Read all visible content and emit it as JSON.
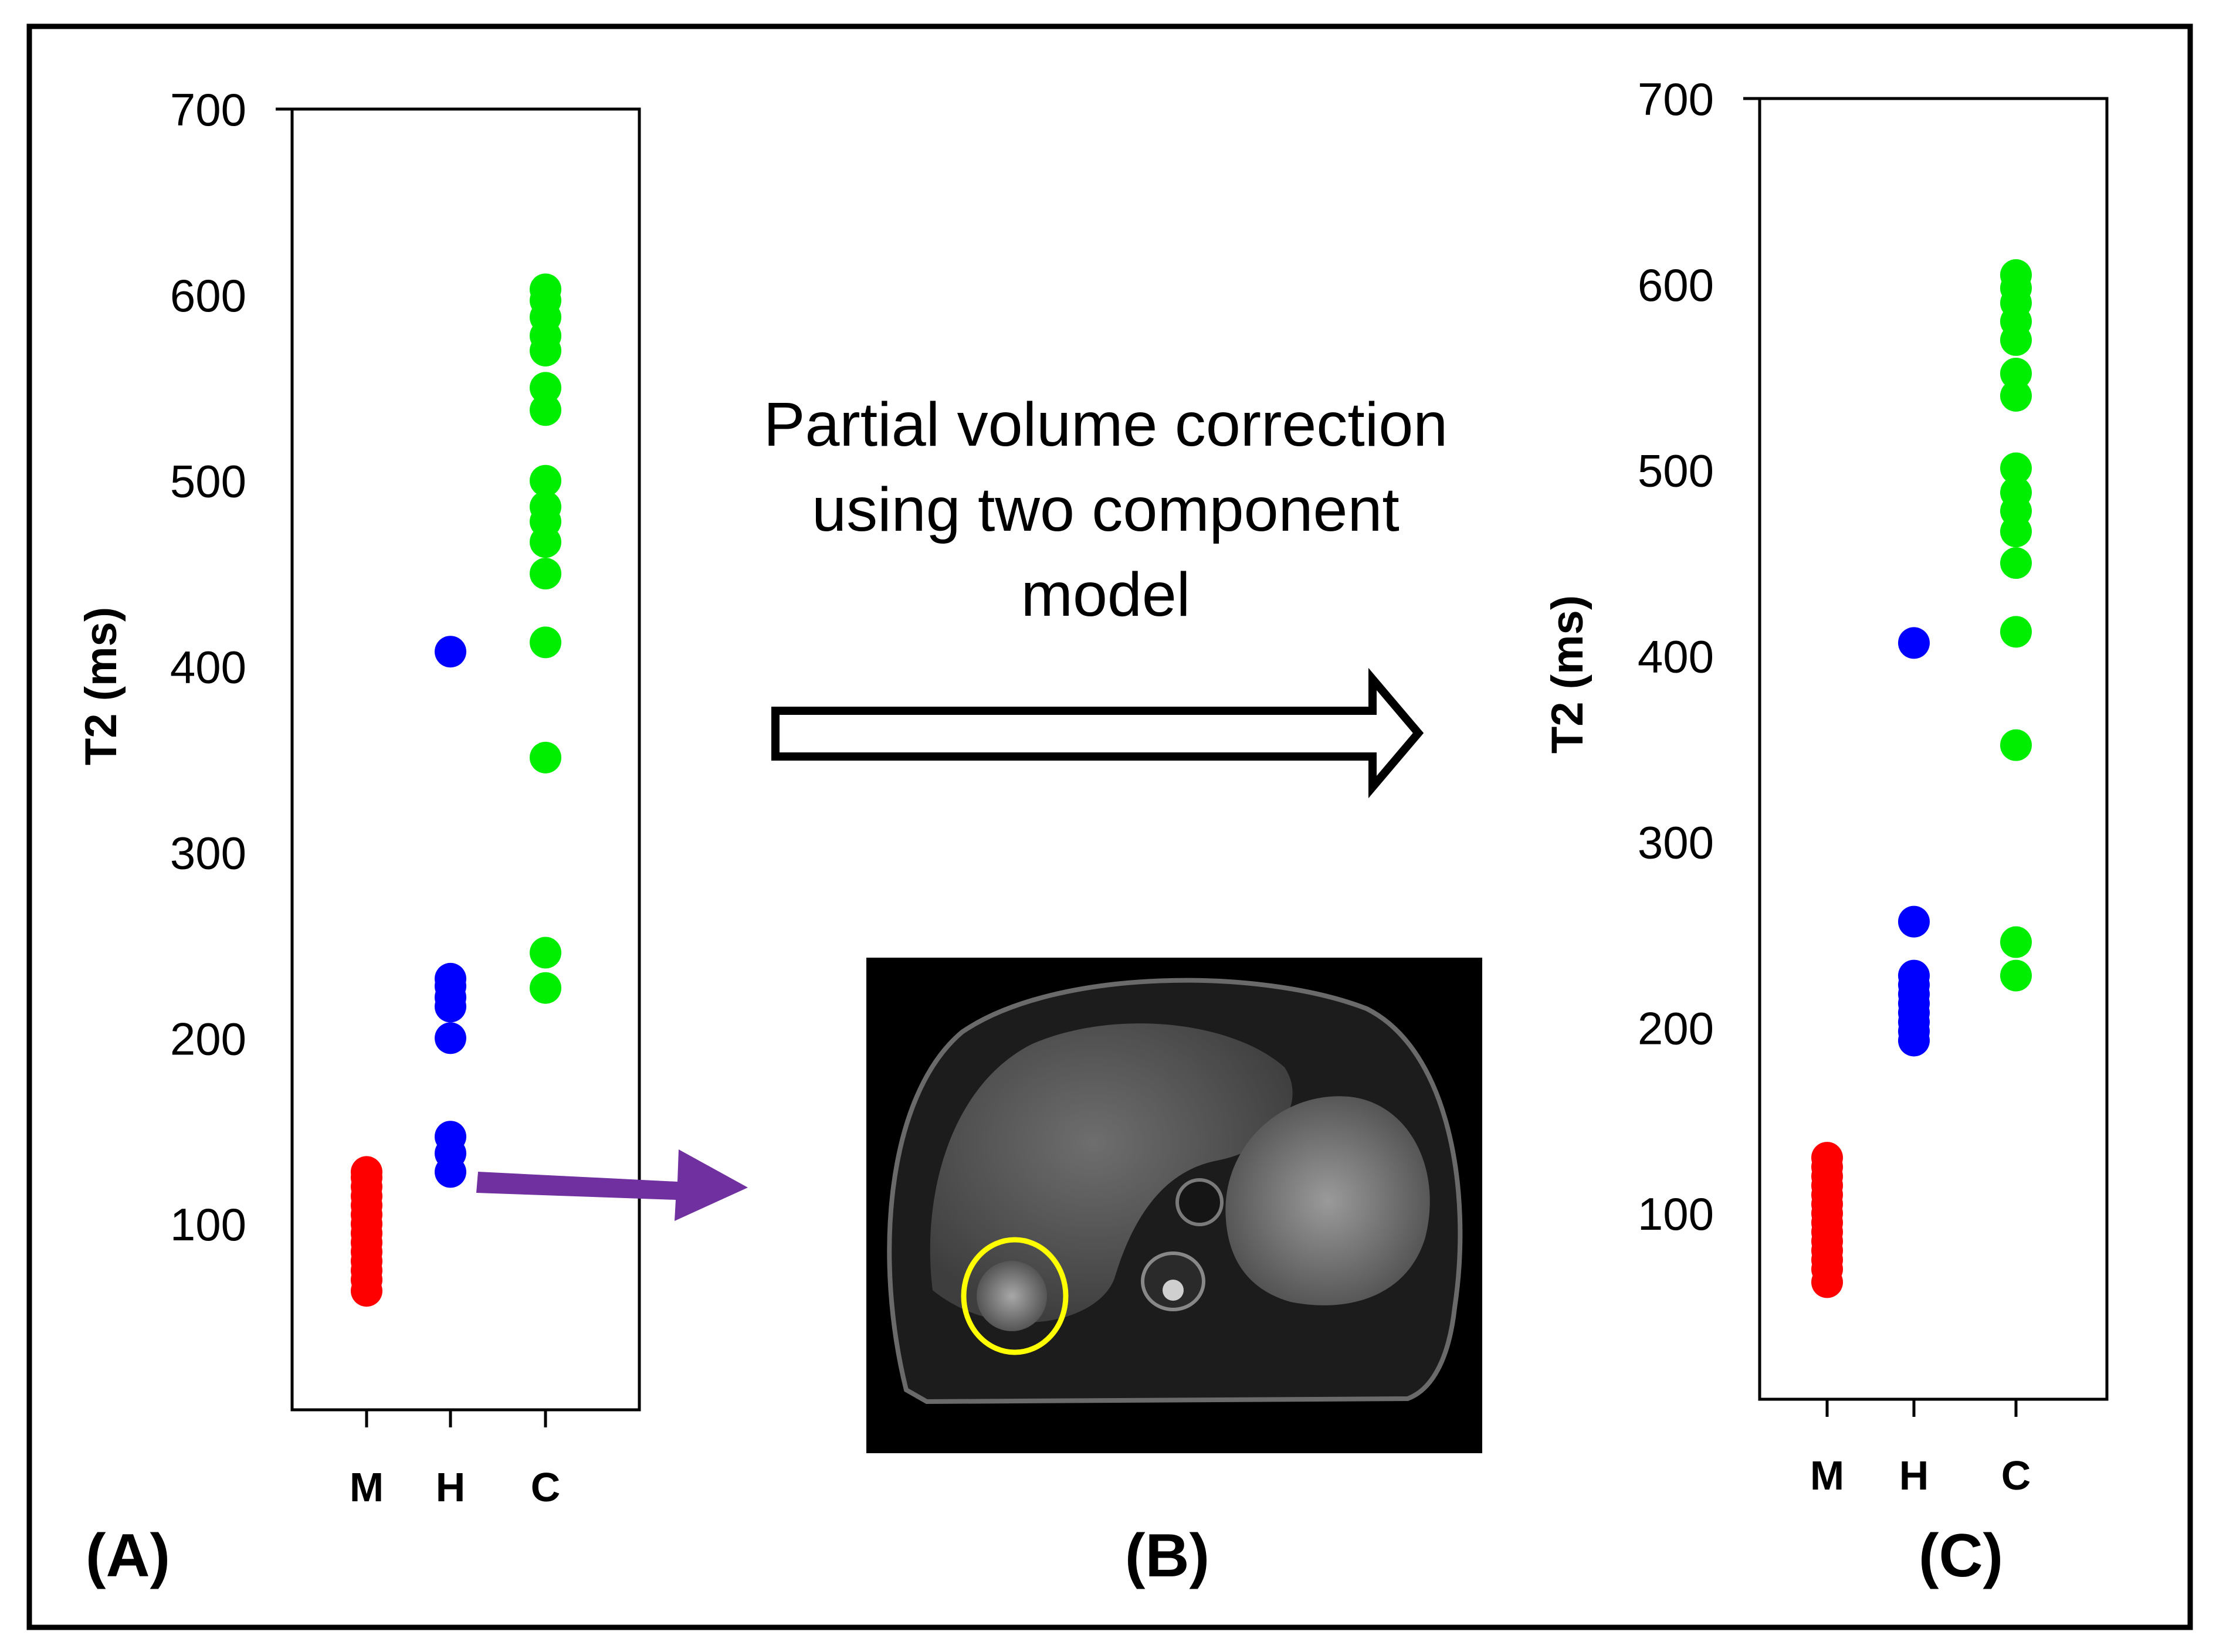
{
  "figure": {
    "panel_labels": [
      "(A)",
      "(B)",
      "(C)"
    ],
    "arrow_caption": [
      "Partial volume correction",
      "using two component",
      "model"
    ],
    "mri_image": {
      "description_icon": "mri-liver-axial-image",
      "highlight_color": "#ffff00"
    }
  },
  "colors": {
    "M": "#ff0000",
    "H": "#0000ff",
    "C": "#00ee00",
    "pointer_arrow": "#7030a0",
    "frame": "#000000"
  },
  "chart_data": [
    {
      "type": "scatter",
      "panel": "(A)",
      "title": "",
      "xlabel": "",
      "ylabel": "T2 (ms)",
      "categories": [
        "M",
        "H",
        "C"
      ],
      "ylim": [
        0,
        700
      ],
      "yticks": [
        100,
        200,
        300,
        400,
        500,
        600,
        700
      ],
      "series": [
        {
          "name": "M",
          "values": [
            64,
            70,
            75,
            80,
            85,
            90,
            95,
            100,
            105,
            110,
            115,
            120,
            125,
            128
          ]
        },
        {
          "name": "H",
          "values": [
            128,
            138,
            147,
            200,
            217,
            222,
            228,
            232,
            408
          ]
        },
        {
          "name": "C",
          "values": [
            227,
            246,
            351,
            413,
            450,
            467,
            478,
            486,
            500,
            538,
            550,
            570,
            578,
            588,
            597,
            603
          ]
        }
      ]
    },
    {
      "type": "scatter",
      "panel": "(C)",
      "title": "",
      "xlabel": "",
      "ylabel": "T2 (ms)",
      "categories": [
        "M",
        "H",
        "C"
      ],
      "ylim": [
        0,
        700
      ],
      "yticks": [
        100,
        200,
        300,
        400,
        500,
        600,
        700
      ],
      "series": [
        {
          "name": "M",
          "values": [
            63,
            70,
            75,
            80,
            85,
            90,
            95,
            100,
            105,
            110,
            115,
            120,
            125,
            130
          ]
        },
        {
          "name": "H",
          "values": [
            193,
            198,
            203,
            208,
            213,
            218,
            223,
            228,
            257,
            407
          ]
        },
        {
          "name": "C",
          "values": [
            228,
            246,
            352,
            413,
            450,
            467,
            478,
            488,
            501,
            540,
            552,
            570,
            580,
            590,
            598,
            605
          ]
        }
      ]
    }
  ]
}
